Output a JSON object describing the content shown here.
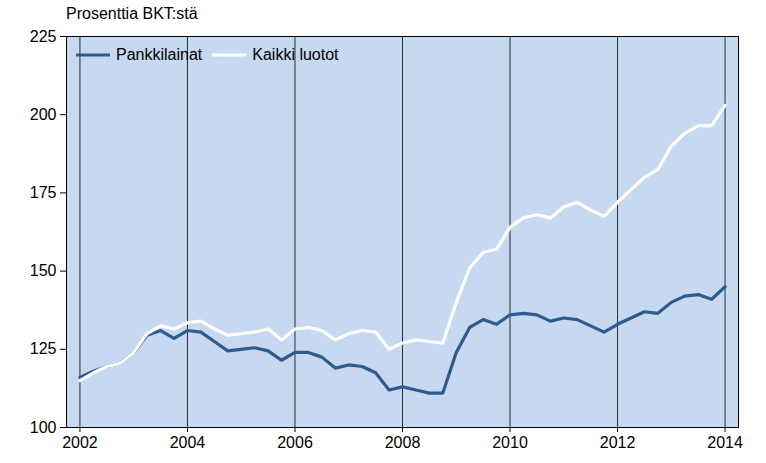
{
  "chart_data": {
    "type": "line",
    "title": "Prosenttia BKT:stä",
    "x": [
      2002,
      2002.25,
      2002.5,
      2002.75,
      2003,
      2003.25,
      2003.5,
      2003.75,
      2004,
      2004.25,
      2004.5,
      2004.75,
      2005,
      2005.25,
      2005.5,
      2005.75,
      2006,
      2006.25,
      2006.5,
      2006.75,
      2007,
      2007.25,
      2007.5,
      2007.75,
      2008,
      2008.25,
      2008.5,
      2008.75,
      2009,
      2009.25,
      2009.5,
      2009.75,
      2010,
      2010.25,
      2010.5,
      2010.75,
      2011,
      2011.25,
      2011.5,
      2011.75,
      2012,
      2012.25,
      2012.5,
      2012.75,
      2013,
      2013.25,
      2013.5,
      2013.75,
      2014
    ],
    "series": [
      {
        "name": "Pankkilainat",
        "color": "#2f5a8f",
        "values": [
          116,
          118,
          119.5,
          120.5,
          124,
          129.5,
          131,
          128.5,
          131,
          130.5,
          127.5,
          124.5,
          125,
          125.5,
          124.5,
          121.5,
          124,
          124,
          122.5,
          119,
          120,
          119.5,
          117.5,
          112,
          113,
          112,
          111,
          111,
          124,
          132,
          134.5,
          133,
          136,
          136.5,
          136,
          134,
          135,
          134.5,
          132.5,
          130.5,
          133,
          135,
          137,
          136.5,
          140,
          142,
          142.5,
          141,
          145
        ]
      },
      {
        "name": "Kaikki luotot",
        "color": "#ffffff",
        "values": [
          115,
          117.5,
          119.5,
          120.5,
          124,
          130,
          132.5,
          131.5,
          133.5,
          134,
          131.5,
          129.5,
          130,
          130.5,
          131.5,
          128,
          131.5,
          132,
          131,
          128,
          130,
          131,
          130.5,
          125,
          127,
          128,
          127.5,
          127,
          140,
          151,
          156,
          157,
          164,
          167,
          168,
          167,
          170.5,
          172,
          169.5,
          167.5,
          172,
          176,
          180,
          182.5,
          190,
          194,
          196.5,
          196.5,
          203
        ]
      }
    ],
    "xlim": [
      2001.75,
      2014.25
    ],
    "xticks": [
      2002,
      2004,
      2006,
      2008,
      2010,
      2012,
      2014
    ],
    "ylim": [
      100,
      225
    ],
    "yticks": [
      100,
      125,
      150,
      175,
      200,
      225
    ],
    "grid": "x",
    "legend": "top-left"
  }
}
